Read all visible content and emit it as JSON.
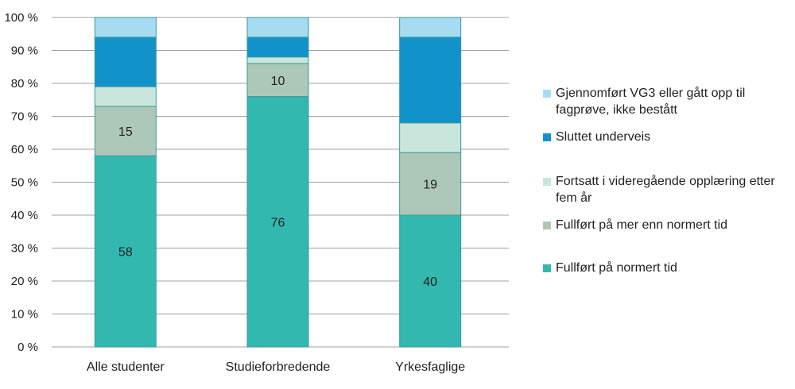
{
  "chart_data": {
    "type": "bar",
    "stacked": true,
    "title": "",
    "xlabel": "",
    "ylabel": "",
    "ylim": [
      0,
      100
    ],
    "yticks": [
      "0 %",
      "10 %",
      "20 %",
      "30 %",
      "40 %",
      "50 %",
      "60 %",
      "70 %",
      "80 %",
      "90 %",
      "100 %"
    ],
    "grid": true,
    "legend_position": "right",
    "categories": [
      "Alle studenter",
      "Studieforbredende",
      "Yrkesfaglige"
    ],
    "series": [
      {
        "name": "Fullført på normert tid",
        "color": "#33b8b0",
        "values": [
          58,
          76,
          40
        ],
        "labels": [
          "58",
          "76",
          "40"
        ]
      },
      {
        "name": "Fullført på mer enn normert tid",
        "color": "#adc8b8",
        "values": [
          15,
          10,
          19
        ],
        "labels": [
          "15",
          "10",
          "19"
        ]
      },
      {
        "name": "Fortsatt i videregående opplæring etter fem år",
        "color": "#c9e6dc",
        "values": [
          6,
          2,
          9
        ],
        "labels": [
          "",
          "",
          ""
        ]
      },
      {
        "name": "Sluttet underveis",
        "color": "#1192c9",
        "values": [
          15,
          6,
          26
        ],
        "labels": [
          "",
          "",
          ""
        ]
      },
      {
        "name": "Gjennomført VG3 eller gått opp til fagprøve, ikke bestått",
        "color": "#a6dcf2",
        "values": [
          6,
          6,
          6
        ],
        "labels": [
          "",
          "",
          ""
        ]
      }
    ],
    "legend_lines": [
      [
        "Gjennomført VG3 eller gått opp til",
        "fagprøve, ikke bestått"
      ],
      [
        "Sluttet underveis"
      ],
      [
        "Fortsatt i videregående opplæring etter",
        "fem år"
      ],
      [
        "Fullført på mer enn normert tid"
      ],
      [
        "Fullført på normert tid"
      ]
    ]
  }
}
